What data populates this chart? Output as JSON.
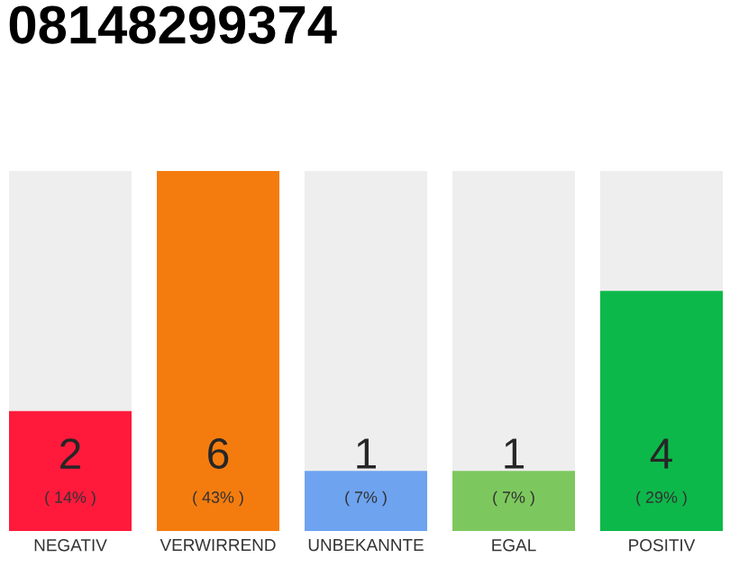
{
  "chart_data": {
    "type": "bar",
    "title": "08148299374",
    "categories": [
      "NEGATIV",
      "VERWIRREND",
      "UNBEKANNTE",
      "EGAL",
      "POSITIV"
    ],
    "values": [
      2,
      6,
      1,
      1,
      4
    ],
    "colors": [
      "#ff1a3c",
      "#f47c0e",
      "#6ea3f0",
      "#7dc85e",
      "#0db84a"
    ],
    "ylim": [
      0,
      6
    ],
    "data_labels": true,
    "annotations": [
      "( 14% )",
      "( 43% )",
      "( 7% )",
      "( 7% )",
      "( 29% )"
    ]
  }
}
